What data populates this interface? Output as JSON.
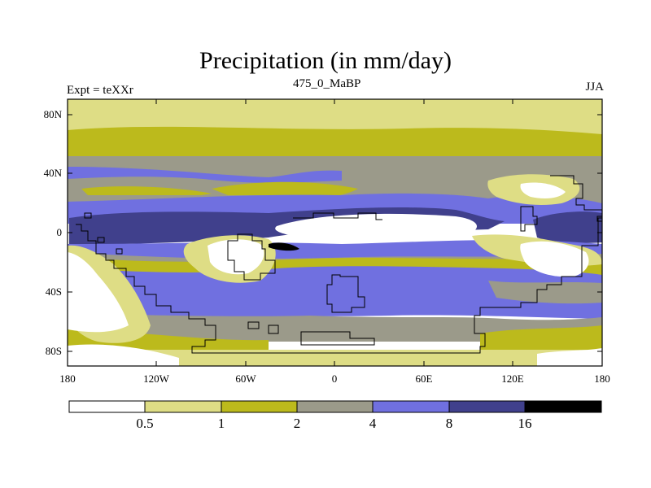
{
  "title": "Precipitation (in mm/day)",
  "experiment_label": "Expt = teXXr",
  "age_label": "475_0_MaBP",
  "season_label": "JJA",
  "colors": {
    "c0": "#ffffff",
    "c1": "#dedd85",
    "c2": "#bcba1c",
    "c3": "#9b9a8a",
    "c4": "#7070e0",
    "c5": "#40408c",
    "c6": "#000000",
    "coast": "#000000"
  },
  "lat_ticks": [
    "80N",
    "40N",
    "0",
    "40S",
    "80S"
  ],
  "lon_ticks": [
    "180",
    "120W",
    "60W",
    "0",
    "60E",
    "120E",
    "180"
  ],
  "colorbar": {
    "labels": [
      "0.5",
      "1",
      "2",
      "4",
      "8",
      "16"
    ],
    "colors": [
      "#ffffff",
      "#dedd85",
      "#bcba1c",
      "#9b9a8a",
      "#7070e0",
      "#40408c",
      "#000000"
    ]
  }
}
